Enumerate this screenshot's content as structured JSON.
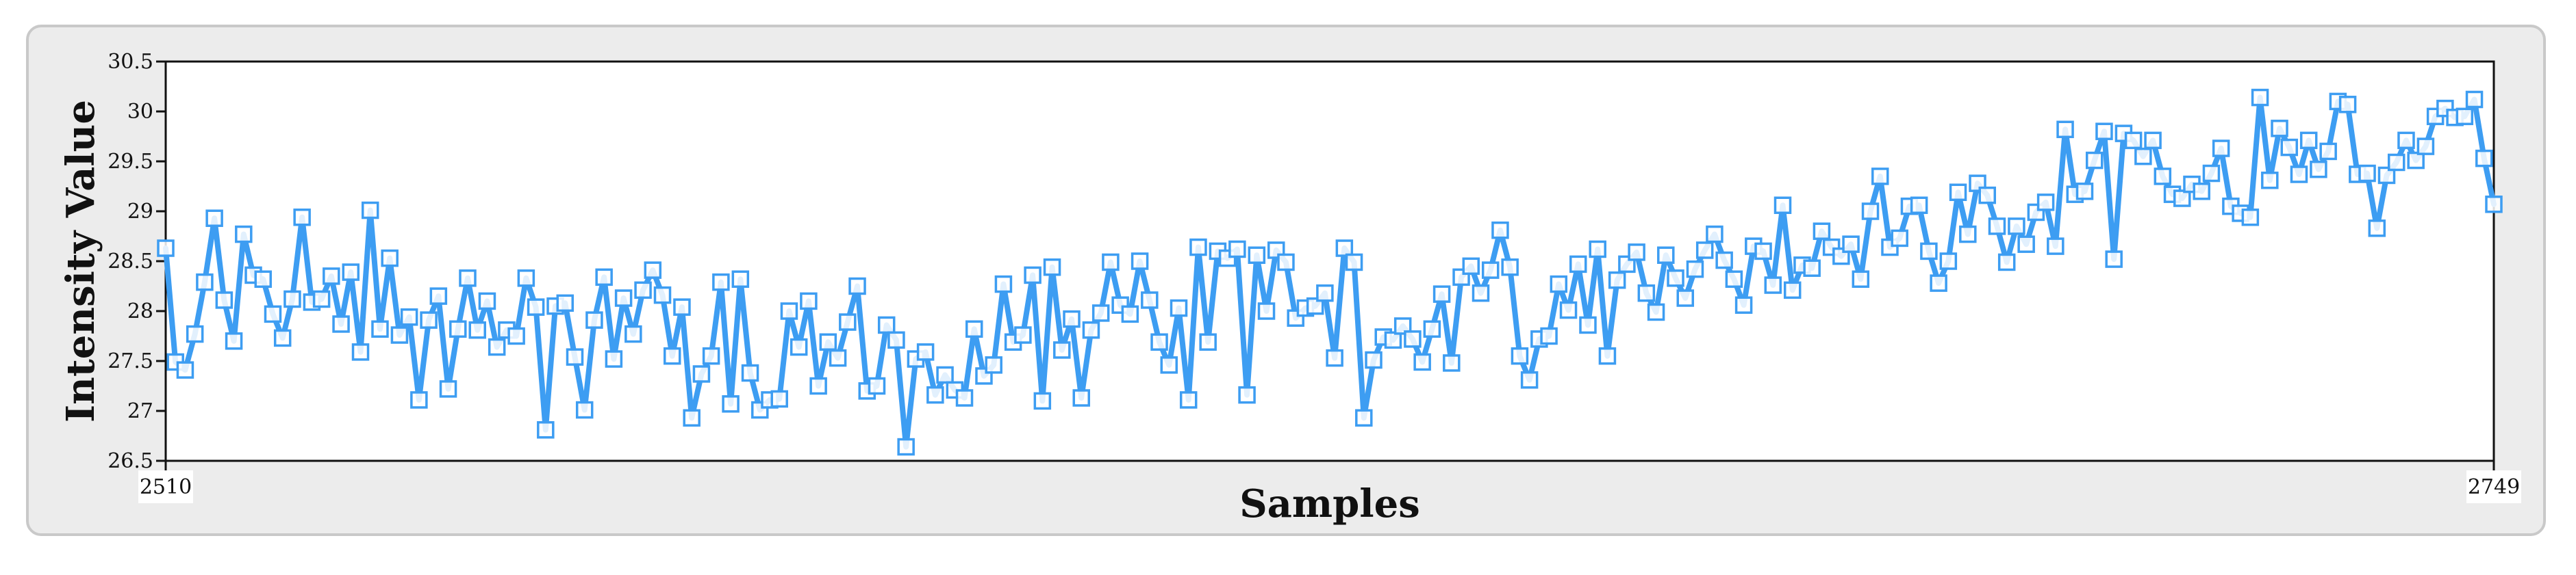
{
  "chart_data": {
    "type": "line",
    "title": "",
    "xlabel": "Samples",
    "ylabel": "Intensity Value",
    "x_start": 2510,
    "x_end": 2749,
    "x_tick_labels": [
      "2510",
      "2749"
    ],
    "ylim": [
      26.5,
      30.5
    ],
    "y_ticks": [
      "26.5",
      "27",
      "27.5",
      "28",
      "28.5",
      "29",
      "29.5",
      "30",
      "30.5"
    ],
    "grid": false,
    "legend": "none",
    "line_color": "#3d9df2",
    "marker": "open-square",
    "series": [
      {
        "values": [
          28.63,
          27.49,
          27.41,
          27.77,
          28.29,
          28.93,
          28.11,
          27.7,
          28.77,
          28.36,
          28.32,
          27.97,
          27.73,
          28.12,
          28.94,
          28.09,
          28.12,
          28.35,
          27.87,
          28.39,
          27.59,
          29.01,
          27.82,
          28.53,
          27.76,
          27.94,
          27.11,
          27.91,
          28.15,
          27.22,
          27.82,
          28.33,
          27.81,
          28.1,
          27.64,
          27.81,
          27.75,
          28.33,
          28.04,
          26.81,
          28.05,
          28.08,
          27.54,
          27.01,
          27.91,
          28.34,
          27.52,
          28.13,
          27.77,
          28.21,
          28.41,
          28.16,
          27.55,
          28.04,
          26.93,
          27.37,
          27.55,
          28.29,
          27.07,
          28.32,
          27.38,
          27.01,
          27.11,
          27.12,
          28.0,
          27.64,
          28.1,
          27.25,
          27.69,
          27.53,
          27.89,
          28.25,
          27.2,
          27.25,
          27.86,
          27.71,
          26.64,
          27.52,
          27.59,
          27.16,
          27.36,
          27.21,
          27.13,
          27.82,
          27.35,
          27.46,
          28.27,
          27.69,
          27.76,
          28.36,
          27.1,
          28.44,
          27.61,
          27.92,
          27.13,
          27.81,
          27.98,
          28.49,
          28.06,
          27.97,
          28.5,
          28.11,
          27.69,
          27.46,
          28.03,
          27.11,
          28.64,
          27.69,
          28.6,
          28.53,
          28.62,
          27.16,
          28.56,
          28.0,
          28.61,
          28.49,
          27.93,
          28.03,
          28.05,
          28.18,
          27.53,
          28.63,
          28.49,
          26.93,
          27.51,
          27.74,
          27.71,
          27.85,
          27.72,
          27.49,
          27.82,
          28.17,
          27.48,
          28.34,
          28.45,
          28.18,
          28.41,
          28.81,
          28.44,
          27.55,
          27.31,
          27.72,
          27.75,
          28.27,
          28.01,
          28.47,
          27.86,
          28.62,
          27.55,
          28.31,
          28.47,
          28.59,
          28.18,
          27.99,
          28.56,
          28.33,
          28.13,
          28.42,
          28.61,
          28.77,
          28.51,
          28.32,
          28.06,
          28.65,
          28.6,
          28.26,
          29.06,
          28.21,
          28.46,
          28.43,
          28.8,
          28.64,
          28.55,
          28.67,
          28.32,
          29.0,
          29.35,
          28.64,
          28.73,
          29.05,
          29.06,
          28.6,
          28.28,
          28.5,
          29.19,
          28.77,
          29.28,
          29.16,
          28.85,
          28.49,
          28.85,
          28.67,
          28.99,
          29.09,
          28.65,
          29.82,
          29.17,
          29.2,
          29.51,
          29.8,
          28.52,
          29.78,
          29.71,
          29.55,
          29.71,
          29.35,
          29.17,
          29.13,
          29.27,
          29.2,
          29.38,
          29.63,
          29.05,
          28.98,
          28.94,
          30.14,
          29.31,
          29.83,
          29.64,
          29.37,
          29.71,
          29.42,
          29.6,
          30.1,
          30.07,
          29.37,
          29.38,
          28.83,
          29.36,
          29.49,
          29.71,
          29.51,
          29.65,
          29.95,
          30.03,
          29.94,
          29.95,
          30.12,
          29.53,
          29.07
        ]
      }
    ]
  }
}
